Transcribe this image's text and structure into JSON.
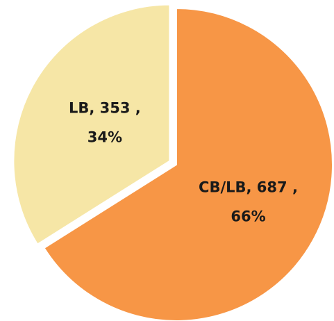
{
  "chart_data": {
    "type": "pie",
    "categories": [
      "CB/LB",
      "LB"
    ],
    "values": [
      687,
      353
    ],
    "colors": [
      "#F79646",
      "#F6E6A6"
    ],
    "data_labels": [
      [
        "CB/LB,  687 ,",
        "66%"
      ],
      [
        "LB,  353 ,",
        "34%"
      ]
    ],
    "exploded": [
      false,
      true
    ]
  }
}
